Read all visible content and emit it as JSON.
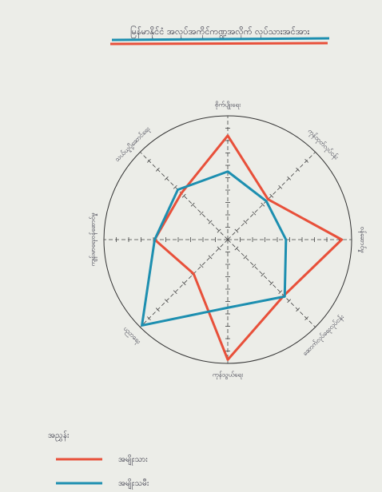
{
  "chart_data": {
    "type": "radar",
    "title": "မြန်မာနိုင်ငံ အလုပ်အကိုင်ကဏ္ဍအလိုက် လုပ်သားအင်အား",
    "categories": [
      "စိုက်ပျိုးရေး",
      "ကုန်ထုတ်လုပ်ငန်း",
      "ဝန်ဆောင်မှု",
      "ဆောက်လုပ်ရေးလုပ်ငန်း",
      "ကုန်သွယ်ရေး",
      "ပညာရေး",
      "ကျန်းမာရေးဝန်ဆောင်မှု",
      "သယ်ယူပို့ဆောင်ရေး"
    ],
    "series": [
      {
        "name": "အမျိုးသား",
        "color": "#e8503a",
        "values": [
          8.4,
          4.6,
          9.2,
          6.4,
          9.7,
          3.9,
          5.9,
          5.3
        ]
      },
      {
        "name": "အမျိုးသမီး",
        "color": "#1d8fb0",
        "values": [
          5.5,
          4.4,
          4.7,
          6.5,
          5.5,
          9.8,
          5.9,
          5.7
        ]
      }
    ],
    "legend_title": "အညွှန်း",
    "rlim": [
      0,
      10
    ],
    "rticks": [
      1,
      2,
      3,
      4,
      5,
      6,
      7,
      8,
      9
    ]
  }
}
